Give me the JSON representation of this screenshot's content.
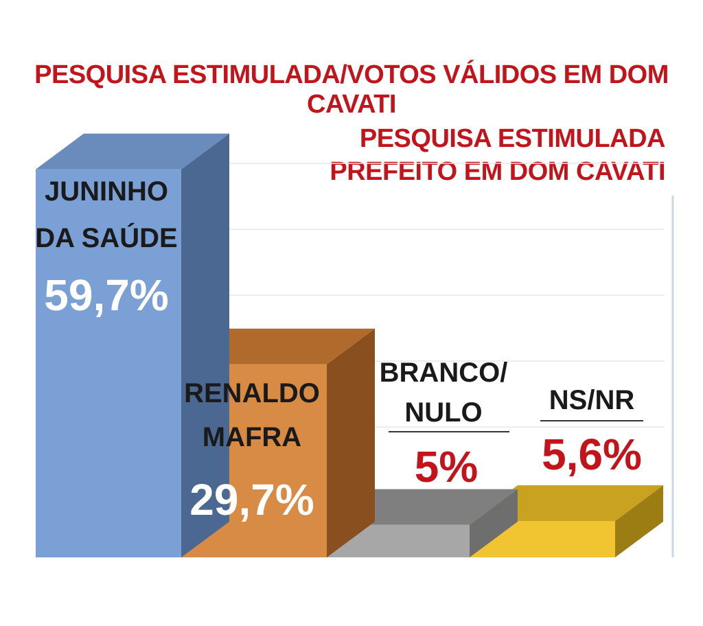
{
  "title": "PESQUISA ESTIMULADA/VOTOS VÁLIDOS EM DOM CAVATI",
  "subtitle_lines": [
    "PESQUISA ESTIMULADA",
    "PREFEITO EM DOM CAVATI"
  ],
  "chart_data": {
    "type": "bar",
    "style": "3d",
    "grid": true,
    "ylim": [
      0,
      65
    ],
    "series": [
      {
        "values": [
          59.7,
          29.7,
          5,
          5.6
        ],
        "labels": [
          "59,7%",
          "29,7%",
          "5%",
          "5,6%"
        ]
      }
    ],
    "categories": [
      {
        "lines": [
          "JUNINHO",
          "DA SAÚDE"
        ]
      },
      {
        "lines": [
          "RENALDO",
          "MAFRA"
        ]
      },
      {
        "lines": [
          "BRANCO/",
          "NULO"
        ]
      },
      {
        "lines": [
          "NS/NR"
        ]
      }
    ],
    "colors": [
      {
        "front": "#7ba0d5",
        "side": "#4a6891",
        "top": "#6a8cbd"
      },
      {
        "front": "#d78b45",
        "side": "#8a4f1f",
        "top": "#b06a2c"
      },
      {
        "front": "#a7a7a7",
        "side": "#6e6e6e",
        "top": "#7f7f7f"
      },
      {
        "front": "#f1c531",
        "side": "#9c7d14",
        "top": "#c9a221"
      }
    ]
  }
}
